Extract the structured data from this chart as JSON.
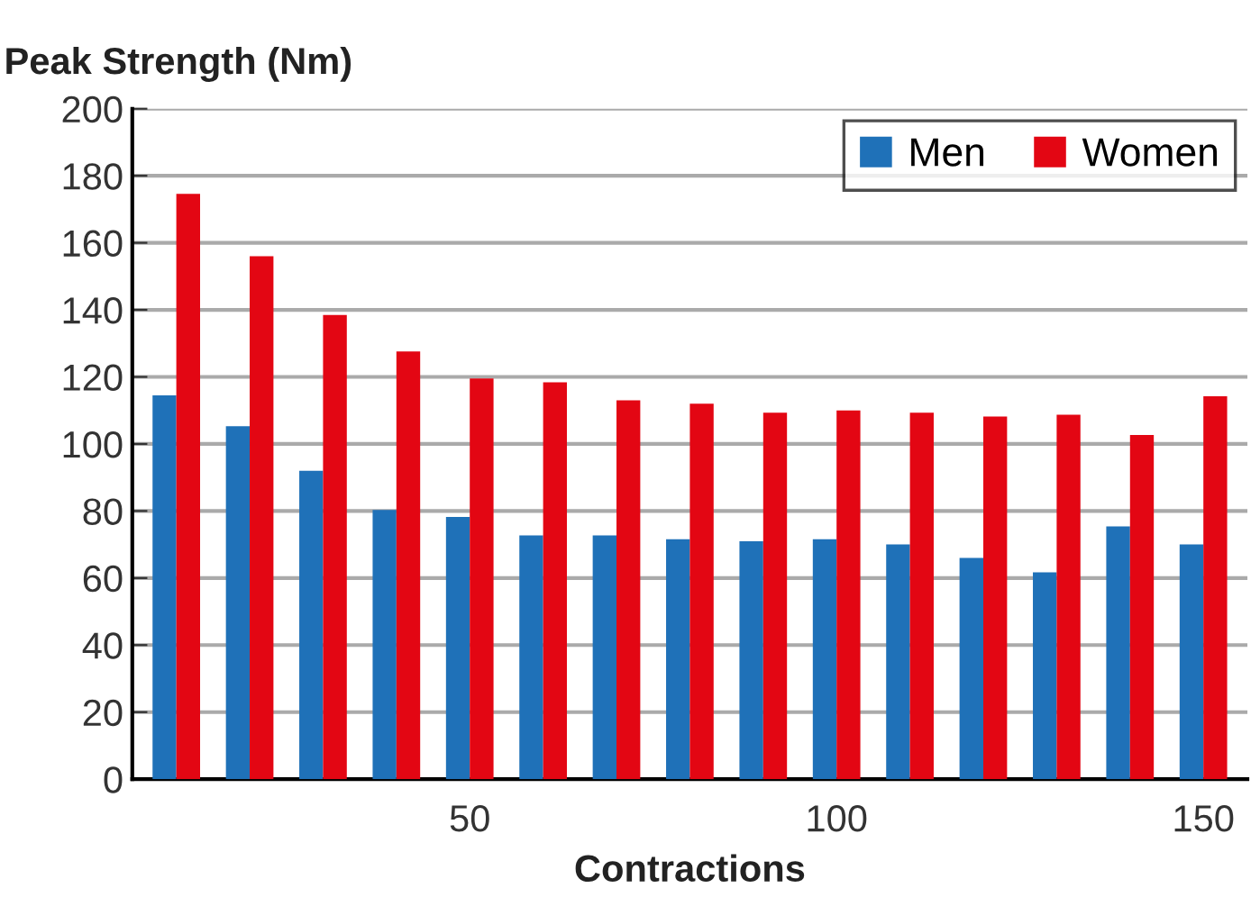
{
  "chart_data": {
    "type": "bar",
    "ylabel": "Peak Strength (Nm)",
    "xlabel": "Contractions",
    "categories": [
      null,
      null,
      null,
      null,
      "50",
      null,
      null,
      null,
      null,
      "100",
      null,
      null,
      null,
      null,
      "150"
    ],
    "series": [
      {
        "name": "Men",
        "color": "#1f71b8",
        "values": [
          114.5,
          105.3,
          92,
          80.3,
          78.2,
          72.7,
          72.7,
          71.6,
          71,
          71.6,
          70,
          66,
          61.7,
          75.4,
          70
        ]
      },
      {
        "name": "Women",
        "color": "#e30613",
        "values": [
          174.6,
          156,
          138.5,
          127.6,
          119.5,
          118.4,
          113,
          112,
          109.3,
          110,
          109.3,
          108.2,
          108.7,
          102.7,
          114.2
        ]
      }
    ],
    "ylim": [
      0,
      200
    ],
    "yticks": [
      0,
      20,
      40,
      60,
      80,
      100,
      120,
      140,
      160,
      180,
      200
    ],
    "grid": "y",
    "legend": "top right"
  }
}
